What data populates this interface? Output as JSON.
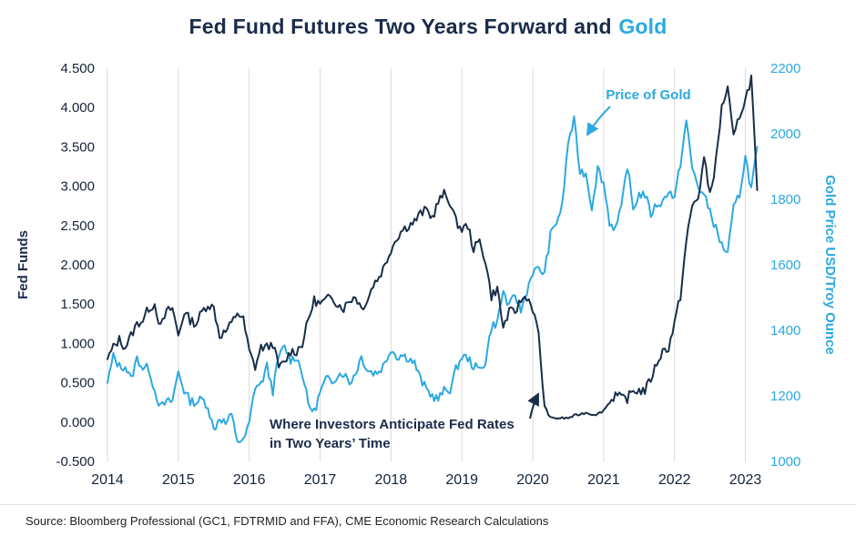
{
  "title": {
    "main": "Fed Fund Futures Two Years Forward and",
    "highlight": "Gold"
  },
  "colors": {
    "navy": "#1A2E49",
    "blue": "#2BA9E0",
    "grid": "#DADADA"
  },
  "left_axis": {
    "title": "Fed Funds",
    "min": -0.5,
    "max": 4.5,
    "ticks": [
      "4.500",
      "4.000",
      "3.500",
      "3.000",
      "2.500",
      "2.000",
      "1.500",
      "1.000",
      "0.500",
      "0.000",
      "-0.500"
    ]
  },
  "right_axis": {
    "title": "Gold Price USD/Troy Ounce",
    "min": 1000,
    "max": 2200,
    "ticks": [
      "2200",
      "2000",
      "1800",
      "1600",
      "1400",
      "1200",
      "1000"
    ]
  },
  "x_axis": {
    "min": 2014,
    "max": 2023.25,
    "ticks": [
      "2014",
      "2015",
      "2016",
      "2017",
      "2018",
      "2019",
      "2020",
      "2021",
      "2022",
      "2023"
    ]
  },
  "annotations": {
    "gold_label": "Price of Gold",
    "fed_label_line1": "Where Investors Anticipate Fed Rates",
    "fed_label_line2": "in Two Years’ Time"
  },
  "source": "Source: Bloomberg Professional (GC1, FDTRMID and FFA), CME Economic Research Calculations",
  "chart_data": {
    "type": "line",
    "title": "Fed Fund Futures Two Years Forward and Gold",
    "ylabel_left": "Fed Funds",
    "ylabel_right": "Gold Price USD/Troy Ounce",
    "left_ylim": [
      -0.5,
      4.5
    ],
    "right_ylim": [
      1000,
      2200
    ],
    "grid": "vertical-yearly",
    "legend": "none",
    "x_unit": "monthly, Jan 2014 - Mar 2023",
    "x_start": 2014.0,
    "x_step_years": 0.08333,
    "series": [
      {
        "name": "Fed Fund Futures Two Years Forward",
        "axis": "left",
        "color": "#1A2E49",
        "values": [
          0.8,
          0.95,
          1.05,
          0.95,
          1.1,
          1.25,
          1.3,
          1.45,
          1.5,
          1.2,
          1.4,
          1.45,
          1.1,
          1.4,
          1.3,
          1.25,
          1.4,
          1.5,
          1.45,
          1.1,
          1.15,
          1.25,
          1.4,
          1.3,
          0.9,
          0.7,
          0.95,
          0.95,
          1.0,
          0.7,
          0.75,
          0.9,
          0.9,
          1.0,
          1.3,
          1.55,
          1.5,
          1.55,
          1.6,
          1.5,
          1.45,
          1.55,
          1.6,
          1.45,
          1.55,
          1.75,
          1.85,
          2.0,
          2.2,
          2.35,
          2.45,
          2.5,
          2.55,
          2.65,
          2.7,
          2.6,
          2.8,
          2.9,
          2.8,
          2.55,
          2.45,
          2.5,
          2.2,
          2.3,
          2.05,
          1.6,
          1.7,
          1.2,
          1.4,
          1.4,
          1.55,
          1.6,
          1.45,
          1.1,
          0.2,
          0.05,
          0.05,
          0.05,
          0.05,
          0.08,
          0.1,
          0.12,
          0.1,
          0.1,
          0.15,
          0.25,
          0.35,
          0.3,
          0.3,
          0.4,
          0.4,
          0.4,
          0.55,
          0.75,
          0.9,
          0.95,
          1.25,
          1.6,
          2.3,
          2.75,
          2.85,
          3.35,
          2.9,
          3.3,
          4.0,
          4.25,
          3.6,
          3.9,
          4.1,
          4.38,
          2.95
        ]
      },
      {
        "name": "Price of Gold",
        "axis": "right",
        "color": "#2BA9E0",
        "values": [
          1240,
          1320,
          1290,
          1290,
          1250,
          1315,
          1285,
          1285,
          1215,
          1165,
          1180,
          1185,
          1275,
          1215,
          1185,
          1180,
          1190,
          1170,
          1095,
          1135,
          1115,
          1140,
          1065,
          1060,
          1115,
          1230,
          1235,
          1290,
          1215,
          1320,
          1350,
          1310,
          1320,
          1270,
          1175,
          1150,
          1210,
          1250,
          1245,
          1265,
          1270,
          1240,
          1270,
          1320,
          1280,
          1270,
          1275,
          1300,
          1345,
          1320,
          1325,
          1315,
          1300,
          1250,
          1220,
          1200,
          1190,
          1215,
          1220,
          1280,
          1320,
          1315,
          1290,
          1280,
          1305,
          1410,
          1425,
          1520,
          1470,
          1510,
          1460,
          1520,
          1580,
          1585,
          1575,
          1690,
          1730,
          1780,
          1975,
          2040,
          1885,
          1880,
          1775,
          1895,
          1850,
          1730,
          1710,
          1770,
          1905,
          1770,
          1815,
          1815,
          1755,
          1785,
          1790,
          1830,
          1800,
          1910,
          2040,
          1895,
          1840,
          1810,
          1765,
          1710,
          1660,
          1635,
          1770,
          1815,
          1930,
          1830,
          1960
        ]
      }
    ]
  }
}
